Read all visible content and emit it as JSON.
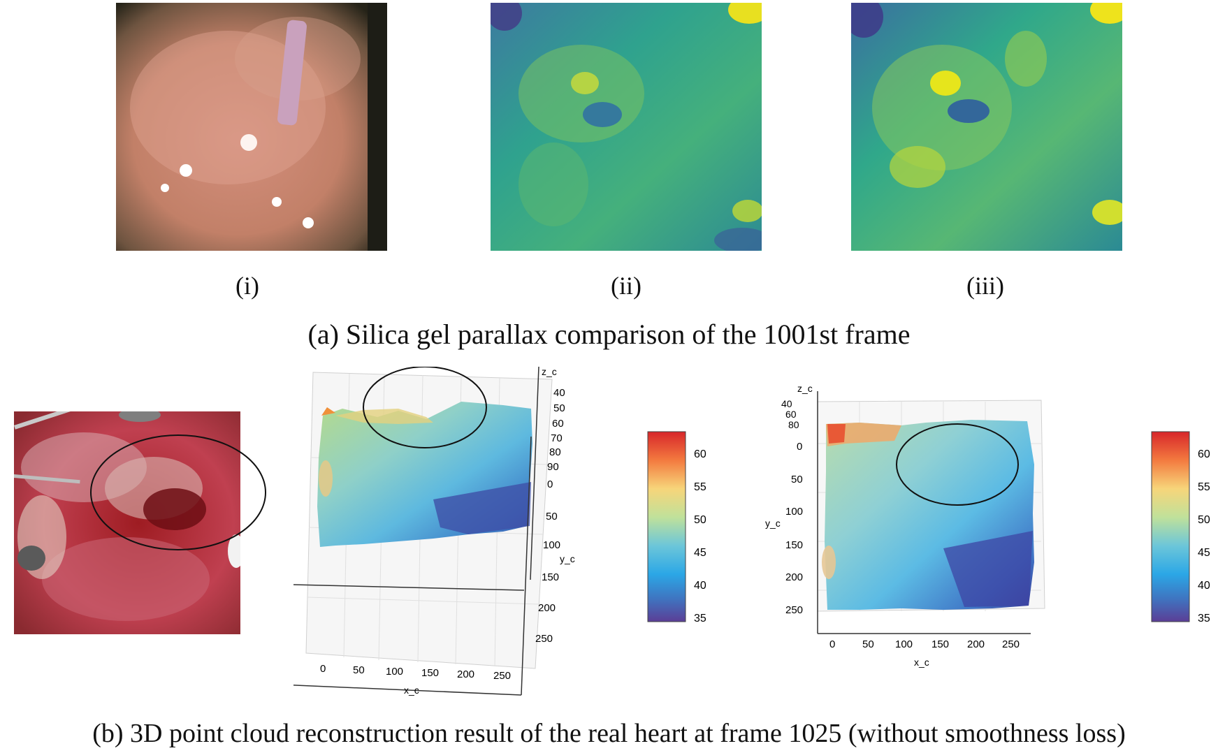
{
  "figure_a": {
    "caption": "(a) Silica gel parallax comparison of the 1001st frame",
    "panels": [
      {
        "label": "(i)",
        "kind": "photo"
      },
      {
        "label": "(ii)",
        "kind": "disparity-map"
      },
      {
        "label": "(iii)",
        "kind": "disparity-map"
      }
    ]
  },
  "figure_b": {
    "caption": "(b) 3D point cloud reconstruction result of the real heart at frame 1025 (without smoothness loss)"
  },
  "chart_data": [
    {
      "type": "surface3d",
      "title": "",
      "xlabel": "x_c",
      "ylabel": "y_c",
      "zlabel": "z_c",
      "x_ticks": [
        "0",
        "50",
        "100",
        "150",
        "200",
        "250"
      ],
      "y_ticks": [
        "0",
        "50",
        "100",
        "150",
        "200",
        "250"
      ],
      "z_ticks": [
        "40",
        "50",
        "60",
        "70",
        "80",
        "90"
      ],
      "colorbar": {
        "range": [
          35,
          64
        ],
        "ticks": [
          "60",
          "55",
          "50",
          "45",
          "40",
          "35"
        ],
        "colormap": "jet-like"
      }
    },
    {
      "type": "surface3d",
      "title": "",
      "xlabel": "x_c",
      "ylabel": "y_c",
      "zlabel": "z_c",
      "x_ticks": [
        "0",
        "50",
        "100",
        "150",
        "200",
        "250"
      ],
      "y_ticks": [
        "0",
        "50",
        "100",
        "150",
        "200",
        "250"
      ],
      "z_ticks": [
        "40",
        "60",
        "80"
      ],
      "colorbar": {
        "range": [
          35,
          64
        ],
        "ticks": [
          "60",
          "55",
          "50",
          "45",
          "40",
          "35"
        ],
        "colormap": "jet-like"
      }
    }
  ]
}
